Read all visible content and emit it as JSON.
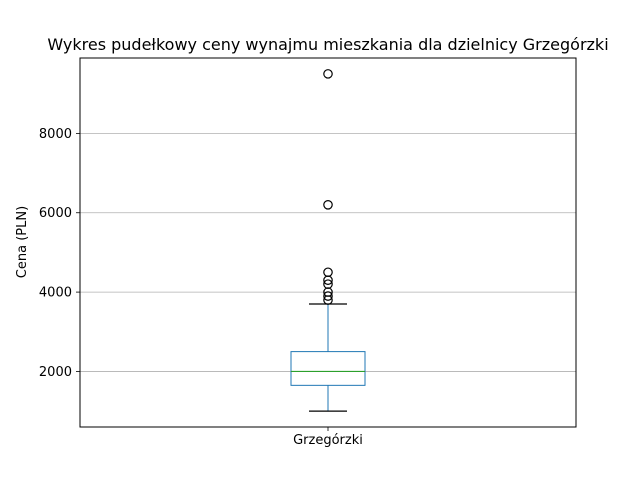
{
  "chart_data": {
    "type": "box",
    "title": "Wykres pudełkowy ceny wynajmu mieszkania dla dzielnicy  Grzegórzki",
    "xlabel": "",
    "ylabel": "Cena (PLN)",
    "categories": [
      "Grzegórzki"
    ],
    "ylim": [
      600,
      9900
    ],
    "yticks": [
      2000,
      4000,
      6000,
      8000
    ],
    "ytick_labels": [
      "2000",
      "4000",
      "6000",
      "8000"
    ],
    "grid": "y",
    "legend": "none",
    "boxes": [
      {
        "category": "Grzegórzki",
        "whisker_low": 1000,
        "q1": 1650,
        "median": 2000,
        "q3": 2500,
        "whisker_high": 3700,
        "outliers": [
          3800,
          3900,
          4000,
          4200,
          4300,
          4500,
          6200,
          9500
        ]
      }
    ],
    "colors": {
      "box": "#1f77b4",
      "median": "#2ca02c",
      "whisker_cap": "#000000",
      "outlier_edge": "#000000",
      "grid": "#b0b0b0",
      "frame": "#000000"
    }
  }
}
